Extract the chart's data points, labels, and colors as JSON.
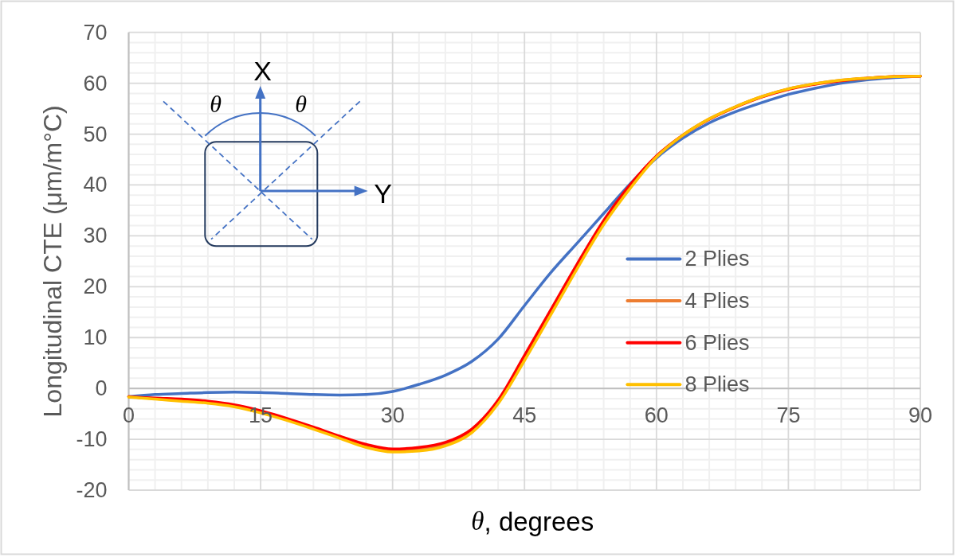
{
  "chart_data": {
    "type": "line",
    "xlabel": "θ, degrees",
    "ylabel": "Longitudinal CTE (μm/m°C)",
    "x": [
      0,
      3,
      6,
      9,
      12,
      15,
      18,
      21,
      24,
      27,
      30,
      33,
      36,
      39,
      42,
      45,
      48,
      51,
      54,
      57,
      60,
      63,
      66,
      69,
      72,
      75,
      78,
      81,
      84,
      87,
      90
    ],
    "series": [
      {
        "name": "2 Plies",
        "color": "#4472c4",
        "values": [
          -1.6,
          -1.2,
          -1.0,
          -0.8,
          -0.7,
          -0.8,
          -1.0,
          -1.2,
          -1.3,
          -1.2,
          -0.6,
          0.8,
          2.6,
          5.3,
          9.7,
          16.3,
          22.8,
          28.6,
          34.4,
          40.2,
          45.3,
          49.2,
          52.2,
          54.4,
          56.2,
          57.8,
          59.0,
          60.0,
          60.7,
          61.1,
          61.4
        ]
      },
      {
        "name": "4 Plies",
        "color": "#ed7d31",
        "values": [
          -1.6,
          -2.0,
          -2.3,
          -2.7,
          -3.4,
          -4.6,
          -6.1,
          -7.8,
          -9.6,
          -11.3,
          -12.2,
          -12.0,
          -11.0,
          -8.4,
          -2.7,
          6.0,
          15.0,
          24.0,
          32.6,
          39.6,
          45.6,
          49.8,
          53.0,
          55.4,
          57.4,
          58.9,
          59.9,
          60.6,
          61.0,
          61.3,
          61.4
        ]
      },
      {
        "name": "6 Plies",
        "color": "#ff0000",
        "values": [
          -1.6,
          -1.9,
          -2.1,
          -2.5,
          -3.2,
          -4.4,
          -5.9,
          -7.6,
          -9.4,
          -11.0,
          -11.9,
          -11.6,
          -10.6,
          -8.0,
          -2.3,
          6.5,
          15.5,
          24.5,
          33.0,
          40.0,
          45.7,
          49.8,
          52.9,
          55.3,
          57.3,
          58.8,
          59.8,
          60.5,
          61.0,
          61.3,
          61.4
        ]
      },
      {
        "name": "8 Plies",
        "color": "#ffc000",
        "values": [
          -1.7,
          -2.1,
          -2.5,
          -2.9,
          -3.6,
          -4.8,
          -6.3,
          -8.0,
          -9.8,
          -11.6,
          -12.5,
          -12.3,
          -11.3,
          -8.7,
          -3.0,
          5.5,
          14.5,
          23.6,
          32.2,
          39.3,
          45.5,
          49.8,
          53.0,
          55.4,
          57.4,
          58.9,
          59.9,
          60.6,
          61.0,
          61.3,
          61.4
        ]
      }
    ],
    "xlim": [
      0,
      90
    ],
    "ylim": [
      -20,
      70
    ],
    "xticks": [
      0,
      {
        "value": 3,
        "label": null
      },
      {
        "value": 6,
        "label": null
      },
      {
        "value": 9,
        "label": null
      },
      {
        "value": 12,
        "label": null
      },
      15,
      {
        "value": 18,
        "label": null
      },
      {
        "value": 21,
        "label": null
      },
      {
        "value": 24,
        "label": null
      },
      {
        "value": 27,
        "label": null
      },
      30,
      {
        "value": 33,
        "label": null
      },
      {
        "value": 36,
        "label": null
      },
      {
        "value": 39,
        "label": null
      },
      {
        "value": 42,
        "label": null
      },
      45,
      {
        "value": 48,
        "label": null
      },
      {
        "value": 51,
        "label": null
      },
      {
        "value": 54,
        "label": null
      },
      {
        "value": 57,
        "label": null
      },
      60,
      {
        "value": 63,
        "label": null
      },
      {
        "value": 66,
        "label": null
      },
      {
        "value": 69,
        "label": null
      },
      {
        "value": 72,
        "label": null
      },
      75,
      {
        "value": 78,
        "label": null
      },
      {
        "value": 81,
        "label": null
      },
      {
        "value": 84,
        "label": null
      },
      {
        "value": 87,
        "label": null
      },
      90
    ],
    "yticks": [
      -20,
      {
        "value": -18,
        "label": null
      },
      {
        "value": -16,
        "label": null
      },
      {
        "value": -14,
        "label": null
      },
      {
        "value": -12,
        "label": null
      },
      -10,
      {
        "value": -8,
        "label": null
      },
      {
        "value": -6,
        "label": null
      },
      {
        "value": -4,
        "label": null
      },
      {
        "value": -2,
        "label": null
      },
      0,
      {
        "value": 2,
        "label": null
      },
      {
        "value": 4,
        "label": null
      },
      {
        "value": 6,
        "label": null
      },
      {
        "value": 8,
        "label": null
      },
      10,
      {
        "value": 12,
        "label": null
      },
      {
        "value": 14,
        "label": null
      },
      {
        "value": 16,
        "label": null
      },
      {
        "value": 18,
        "label": null
      },
      20,
      {
        "value": 22,
        "label": null
      },
      {
        "value": 24,
        "label": null
      },
      {
        "value": 26,
        "label": null
      },
      {
        "value": 28,
        "label": null
      },
      30,
      {
        "value": 32,
        "label": null
      },
      {
        "value": 34,
        "label": null
      },
      {
        "value": 36,
        "label": null
      },
      {
        "value": 38,
        "label": null
      },
      40,
      {
        "value": 42,
        "label": null
      },
      {
        "value": 44,
        "label": null
      },
      {
        "value": 46,
        "label": null
      },
      {
        "value": 48,
        "label": null
      },
      50,
      {
        "value": 52,
        "label": null
      },
      {
        "value": 54,
        "label": null
      },
      {
        "value": 56,
        "label": null
      },
      {
        "value": 58,
        "label": null
      },
      60,
      {
        "value": 62,
        "label": null
      },
      {
        "value": 64,
        "label": null
      },
      {
        "value": 66,
        "label": null
      },
      {
        "value": 68,
        "label": null
      },
      70
    ],
    "grid": true,
    "legend": "right",
    "annotations": [
      "X",
      "Y",
      "θ",
      "θ"
    ]
  }
}
